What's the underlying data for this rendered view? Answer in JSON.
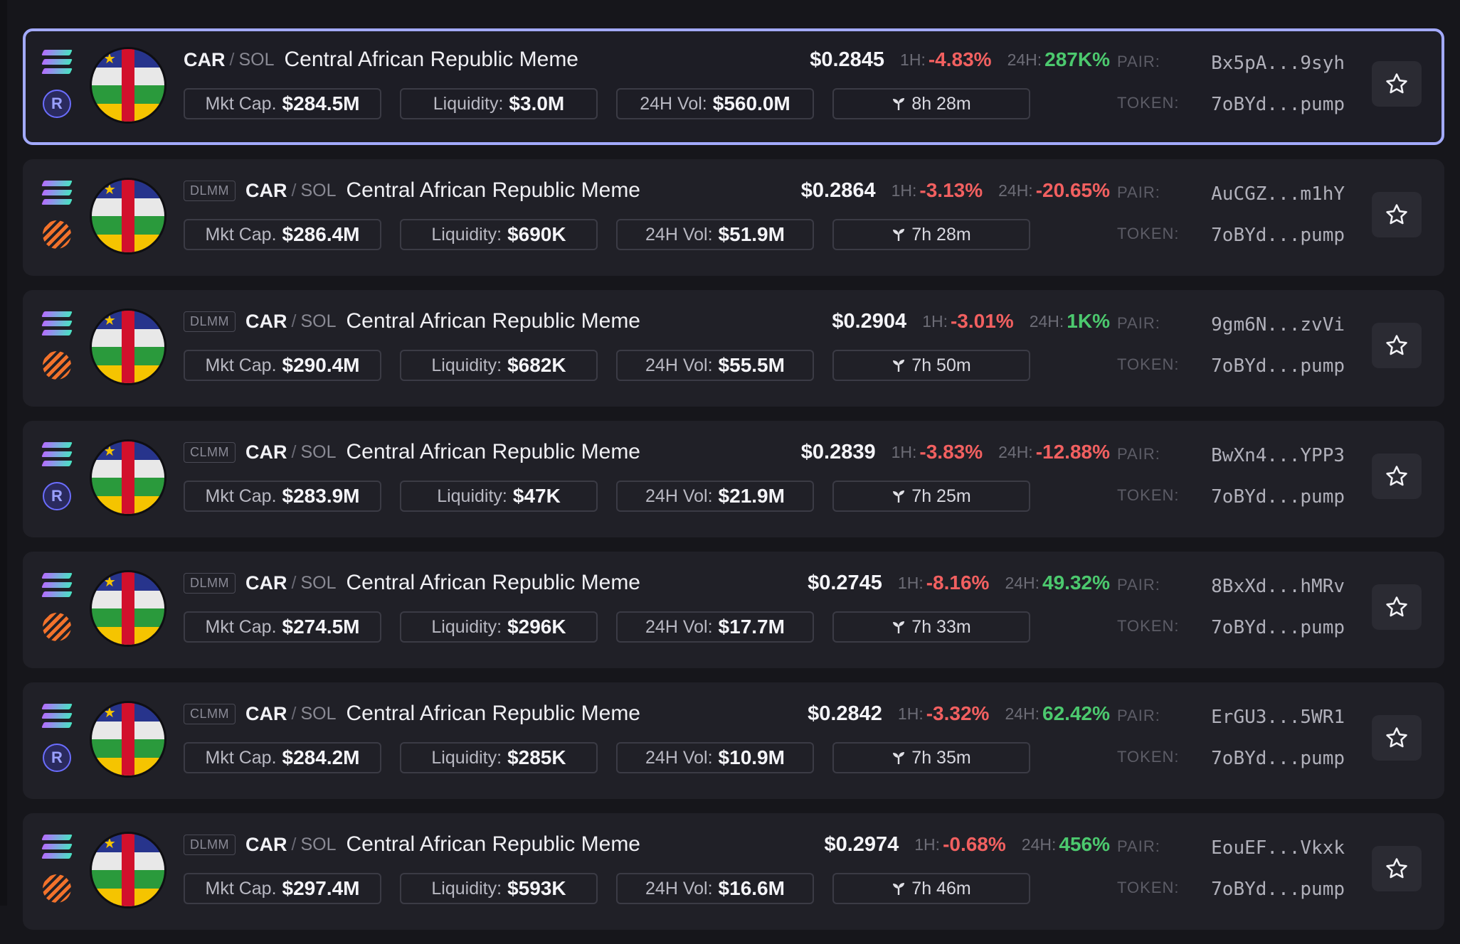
{
  "rows": [
    {
      "selected": true,
      "chain_icon": "solana-icon",
      "dex_icon": "raydium-icon",
      "badge": "",
      "base": "CAR",
      "quote": "SOL",
      "name": "Central African Republic Meme",
      "price": "$0.2845",
      "h1_label": "1H:",
      "h1": "-4.83%",
      "h1_dir": "neg",
      "h24_label": "24H:",
      "h24": "287K%",
      "h24_dir": "pos",
      "mcap_label": "Mkt Cap.",
      "mcap": "$284.5M",
      "liq_label": "Liquidity:",
      "liq": "$3.0M",
      "vol_label": "24H Vol:",
      "vol": "$560.0M",
      "age": "8h 28m",
      "pair_label": "PAIR:",
      "pair": "Bx5pA...9syh",
      "token_label": "TOKEN:",
      "token": "7oBYd...pump"
    },
    {
      "selected": false,
      "chain_icon": "solana-icon",
      "dex_icon": "meteora-icon",
      "badge": "DLMM",
      "base": "CAR",
      "quote": "SOL",
      "name": "Central African Republic Meme",
      "price": "$0.2864",
      "h1_label": "1H:",
      "h1": "-3.13%",
      "h1_dir": "neg",
      "h24_label": "24H:",
      "h24": "-20.65%",
      "h24_dir": "neg",
      "mcap_label": "Mkt Cap.",
      "mcap": "$286.4M",
      "liq_label": "Liquidity:",
      "liq": "$690K",
      "vol_label": "24H Vol:",
      "vol": "$51.9M",
      "age": "7h 28m",
      "pair_label": "PAIR:",
      "pair": "AuCGZ...m1hY",
      "token_label": "TOKEN:",
      "token": "7oBYd...pump"
    },
    {
      "selected": false,
      "chain_icon": "solana-icon",
      "dex_icon": "meteora-icon",
      "badge": "DLMM",
      "base": "CAR",
      "quote": "SOL",
      "name": "Central African Republic Meme",
      "price": "$0.2904",
      "h1_label": "1H:",
      "h1": "-3.01%",
      "h1_dir": "neg",
      "h24_label": "24H:",
      "h24": "1K%",
      "h24_dir": "pos",
      "mcap_label": "Mkt Cap.",
      "mcap": "$290.4M",
      "liq_label": "Liquidity:",
      "liq": "$682K",
      "vol_label": "24H Vol:",
      "vol": "$55.5M",
      "age": "7h 50m",
      "pair_label": "PAIR:",
      "pair": "9gm6N...zvVi",
      "token_label": "TOKEN:",
      "token": "7oBYd...pump"
    },
    {
      "selected": false,
      "chain_icon": "solana-icon",
      "dex_icon": "raydium-icon",
      "badge": "CLMM",
      "base": "CAR",
      "quote": "SOL",
      "name": "Central African Republic Meme",
      "price": "$0.2839",
      "h1_label": "1H:",
      "h1": "-3.83%",
      "h1_dir": "neg",
      "h24_label": "24H:",
      "h24": "-12.88%",
      "h24_dir": "neg",
      "mcap_label": "Mkt Cap.",
      "mcap": "$283.9M",
      "liq_label": "Liquidity:",
      "liq": "$47K",
      "vol_label": "24H Vol:",
      "vol": "$21.9M",
      "age": "7h 25m",
      "pair_label": "PAIR:",
      "pair": "BwXn4...YPP3",
      "token_label": "TOKEN:",
      "token": "7oBYd...pump"
    },
    {
      "selected": false,
      "chain_icon": "solana-icon",
      "dex_icon": "meteora-icon",
      "badge": "DLMM",
      "base": "CAR",
      "quote": "SOL",
      "name": "Central African Republic Meme",
      "price": "$0.2745",
      "h1_label": "1H:",
      "h1": "-8.16%",
      "h1_dir": "neg",
      "h24_label": "24H:",
      "h24": "49.32%",
      "h24_dir": "pos",
      "mcap_label": "Mkt Cap.",
      "mcap": "$274.5M",
      "liq_label": "Liquidity:",
      "liq": "$296K",
      "vol_label": "24H Vol:",
      "vol": "$17.7M",
      "age": "7h 33m",
      "pair_label": "PAIR:",
      "pair": "8BxXd...hMRv",
      "token_label": "TOKEN:",
      "token": "7oBYd...pump"
    },
    {
      "selected": false,
      "chain_icon": "solana-icon",
      "dex_icon": "raydium-icon",
      "badge": "CLMM",
      "base": "CAR",
      "quote": "SOL",
      "name": "Central African Republic Meme",
      "price": "$0.2842",
      "h1_label": "1H:",
      "h1": "-3.32%",
      "h1_dir": "neg",
      "h24_label": "24H:",
      "h24": "62.42%",
      "h24_dir": "pos",
      "mcap_label": "Mkt Cap.",
      "mcap": "$284.2M",
      "liq_label": "Liquidity:",
      "liq": "$285K",
      "vol_label": "24H Vol:",
      "vol": "$10.9M",
      "age": "7h 35m",
      "pair_label": "PAIR:",
      "pair": "ErGU3...5WR1",
      "token_label": "TOKEN:",
      "token": "7oBYd...pump"
    },
    {
      "selected": false,
      "chain_icon": "solana-icon",
      "dex_icon": "meteora-icon",
      "badge": "DLMM",
      "base": "CAR",
      "quote": "SOL",
      "name": "Central African Republic Meme",
      "price": "$0.2974",
      "h1_label": "1H:",
      "h1": "-0.68%",
      "h1_dir": "neg",
      "h24_label": "24H:",
      "h24": "456%",
      "h24_dir": "pos",
      "mcap_label": "Mkt Cap.",
      "mcap": "$297.4M",
      "liq_label": "Liquidity:",
      "liq": "$593K",
      "vol_label": "24H Vol:",
      "vol": "$16.6M",
      "age": "7h 46m",
      "pair_label": "PAIR:",
      "pair": "EouEF...Vkxk",
      "token_label": "TOKEN:",
      "token": "7oBYd...pump"
    }
  ],
  "colors": {
    "accent": "#a3aaff",
    "negative": "#f26060",
    "positive": "#4cc96e"
  }
}
